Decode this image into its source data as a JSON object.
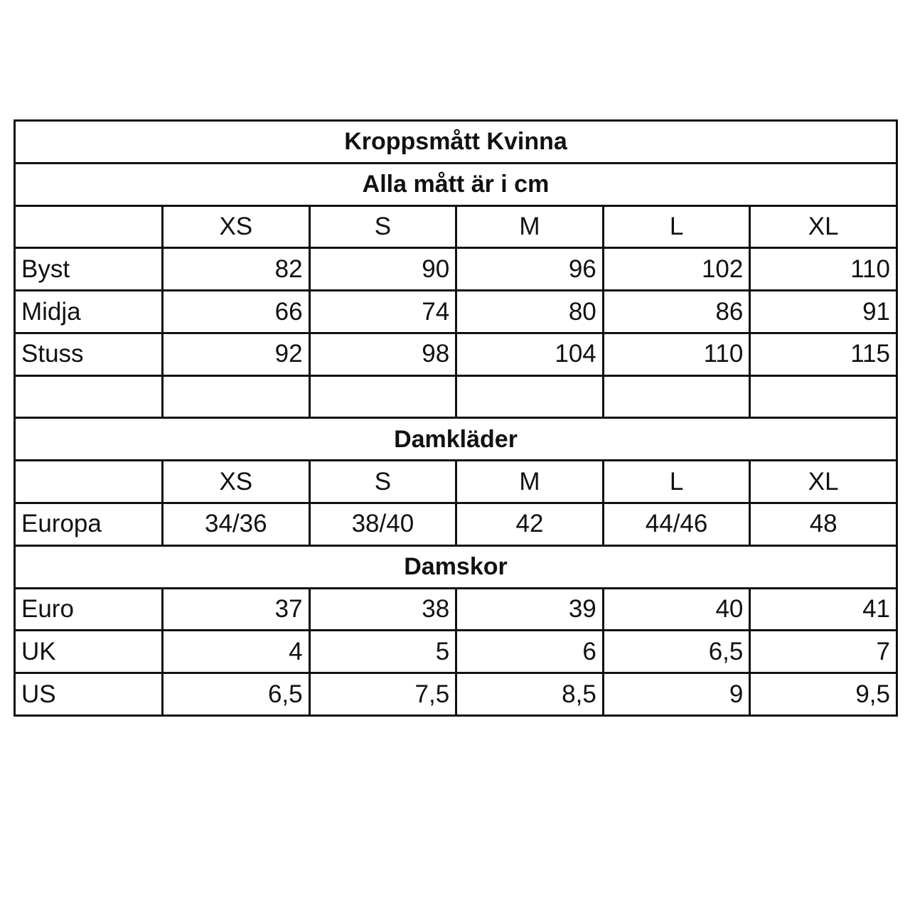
{
  "title": "Kroppsmått Kvinna",
  "subtitle": "Alla mått är i cm",
  "sizes": [
    "XS",
    "S",
    "M",
    "L",
    "XL"
  ],
  "body_measurements": [
    {
      "label": "Byst",
      "values": [
        "82",
        "90",
        "96",
        "102",
        "110"
      ]
    },
    {
      "label": "Midja",
      "values": [
        "66",
        "74",
        "80",
        "86",
        "91"
      ]
    },
    {
      "label": "Stuss",
      "values": [
        "92",
        "98",
        "104",
        "110",
        "115"
      ]
    }
  ],
  "clothing": {
    "title": "Damkläder",
    "sizes": [
      "XS",
      "S",
      "M",
      "L",
      "XL"
    ],
    "rows": [
      {
        "label": "Europa",
        "values": [
          "34/36",
          "38/40",
          "42",
          "44/46",
          "48"
        ]
      }
    ]
  },
  "shoes": {
    "title": "Damskor",
    "rows": [
      {
        "label": "Euro",
        "values": [
          "37",
          "38",
          "39",
          "40",
          "41"
        ]
      },
      {
        "label": "UK",
        "values": [
          "4",
          "5",
          "6",
          "6,5",
          "7"
        ]
      },
      {
        "label": "US",
        "values": [
          "6,5",
          "7,5",
          "8,5",
          "9",
          "9,5"
        ]
      }
    ]
  }
}
